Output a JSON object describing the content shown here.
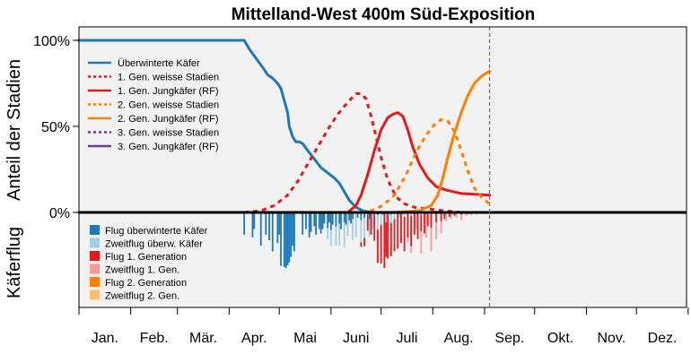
{
  "chart_data": {
    "type": "line+stacked-bar",
    "title": "Mittelland-West 400m Süd-Exposition",
    "ylabel_top": "Anteil der Stadien",
    "ylabel_bottom": "Käferflug",
    "y_ticks": [
      "100%",
      "50%",
      "0%"
    ],
    "y_tick_values": [
      100,
      50,
      0
    ],
    "ylim_top": [
      0,
      100
    ],
    "x_months": [
      "Jan.",
      "Feb.",
      "Mär.",
      "Apr.",
      "Mai",
      "Juni",
      "Juli",
      "Aug.",
      "Sep.",
      "Okt.",
      "Nov.",
      "Dez."
    ],
    "x_range_days": [
      1,
      365
    ],
    "current_day": 247,
    "background_color": "#f2f2f2",
    "legend_top": [
      {
        "label": "Überwinterte Käfer",
        "color": "#1f78b4",
        "dash": false
      },
      {
        "label": "1. Gen. weisse Stadien",
        "color": "#e31a1c",
        "dash": true
      },
      {
        "label": "1. Gen. Jungkäfer (RF)",
        "color": "#e31a1c",
        "dash": false
      },
      {
        "label": "2. Gen. weisse Stadien",
        "color": "#ff7f00",
        "dash": true
      },
      {
        "label": "2. Gen. Jungkäfer (RF)",
        "color": "#ff7f00",
        "dash": false
      },
      {
        "label": "3. Gen. weisse Stadien",
        "color": "#6a3d9a",
        "dash": true
      },
      {
        "label": "3. Gen. Jungkäfer (RF)",
        "color": "#6a3d9a",
        "dash": false
      }
    ],
    "legend_bottom": [
      {
        "label": "Flug überwinterte Käfer",
        "color": "#1f78b4"
      },
      {
        "label": "Zweitflug überw. Käfer",
        "color": "#a6cee3"
      },
      {
        "label": "Flug 1. Generation",
        "color": "#e31a1c"
      },
      {
        "label": "Zweitflug 1. Gen.",
        "color": "#fb9a99"
      },
      {
        "label": "Flug 2. Generation",
        "color": "#ff7f00"
      },
      {
        "label": "Zweitflug 2. Gen.",
        "color": "#fdbf6f"
      }
    ],
    "series": [
      {
        "name": "Überwinterte Käfer",
        "color": "#1f78b4",
        "dash": false,
        "points": [
          [
            1,
            100
          ],
          [
            100,
            100
          ],
          [
            103,
            95
          ],
          [
            106,
            91
          ],
          [
            109,
            87
          ],
          [
            112,
            83
          ],
          [
            114,
            80
          ],
          [
            117,
            78
          ],
          [
            120,
            75
          ],
          [
            122,
            72
          ],
          [
            124,
            65
          ],
          [
            126,
            58
          ],
          [
            127,
            50
          ],
          [
            129,
            44
          ],
          [
            131,
            41
          ],
          [
            133,
            41
          ],
          [
            135,
            40
          ],
          [
            138,
            36
          ],
          [
            142,
            31
          ],
          [
            146,
            26
          ],
          [
            150,
            23
          ],
          [
            154,
            20
          ],
          [
            157,
            17
          ],
          [
            160,
            12
          ],
          [
            163,
            7
          ],
          [
            167,
            3
          ],
          [
            171,
            1
          ],
          [
            176,
            0
          ],
          [
            247,
            0
          ]
        ]
      },
      {
        "name": "1. Gen. weisse Stadien",
        "color": "#e31a1c",
        "dash": true,
        "points": [
          [
            100,
            0
          ],
          [
            110,
            1
          ],
          [
            118,
            4
          ],
          [
            126,
            10
          ],
          [
            132,
            18
          ],
          [
            138,
            28
          ],
          [
            144,
            38
          ],
          [
            150,
            48
          ],
          [
            156,
            57
          ],
          [
            162,
            64
          ],
          [
            167,
            69
          ],
          [
            170,
            69
          ],
          [
            173,
            66
          ],
          [
            176,
            56
          ],
          [
            179,
            44
          ],
          [
            182,
            32
          ],
          [
            186,
            19
          ],
          [
            191,
            9
          ],
          [
            196,
            5
          ],
          [
            202,
            3
          ],
          [
            210,
            2
          ],
          [
            220,
            1
          ],
          [
            230,
            0
          ],
          [
            247,
            0
          ]
        ]
      },
      {
        "name": "1. Gen. Jungkäfer (RF)",
        "color": "#e31a1c",
        "dash": false,
        "points": [
          [
            1,
            0
          ],
          [
            162,
            0
          ],
          [
            167,
            4
          ],
          [
            170,
            10
          ],
          [
            174,
            22
          ],
          [
            178,
            36
          ],
          [
            182,
            48
          ],
          [
            186,
            55
          ],
          [
            189,
            57
          ],
          [
            192,
            58
          ],
          [
            195,
            56
          ],
          [
            198,
            48
          ],
          [
            201,
            38
          ],
          [
            205,
            28
          ],
          [
            210,
            20
          ],
          [
            215,
            15
          ],
          [
            221,
            13
          ],
          [
            230,
            11
          ],
          [
            247,
            10
          ]
        ]
      },
      {
        "name": "2. Gen. weisse Stadien",
        "color": "#ff7f00",
        "dash": true,
        "points": [
          [
            170,
            0
          ],
          [
            176,
            1
          ],
          [
            183,
            4
          ],
          [
            190,
            10
          ],
          [
            197,
            22
          ],
          [
            203,
            35
          ],
          [
            209,
            45
          ],
          [
            214,
            51
          ],
          [
            218,
            54
          ],
          [
            222,
            53
          ],
          [
            226,
            47
          ],
          [
            230,
            36
          ],
          [
            234,
            24
          ],
          [
            238,
            14
          ],
          [
            242,
            9
          ],
          [
            247,
            5
          ]
        ]
      },
      {
        "name": "2. Gen. Jungkäfer (RF)",
        "color": "#ff7f00",
        "dash": false,
        "points": [
          [
            190,
            0
          ],
          [
            205,
            1
          ],
          [
            212,
            4
          ],
          [
            216,
            10
          ],
          [
            219,
            20
          ],
          [
            222,
            32
          ],
          [
            226,
            46
          ],
          [
            230,
            58
          ],
          [
            234,
            68
          ],
          [
            238,
            75
          ],
          [
            242,
            79
          ],
          [
            245,
            81
          ],
          [
            247,
            82
          ]
        ]
      }
    ],
    "flight_bars": [
      {
        "name": "Flug überwinterte Käfer",
        "color": "#1f78b4",
        "days": [
          100,
          105,
          106,
          110,
          113,
          115,
          117,
          120,
          121,
          122,
          124,
          125,
          126,
          127,
          128,
          129,
          130,
          135,
          137,
          139,
          140,
          142,
          143,
          145,
          146,
          147,
          148,
          150,
          151,
          152,
          153,
          155,
          157,
          158,
          160,
          161,
          163,
          164,
          165,
          168,
          170,
          172,
          174,
          175,
          178,
          180,
          183,
          186,
          188,
          191
        ],
        "values": [
          40,
          45,
          30,
          60,
          40,
          50,
          70,
          55,
          40,
          96,
          98,
          100,
          95,
          90,
          80,
          60,
          70,
          40,
          30,
          45,
          35,
          25,
          40,
          30,
          38,
          30,
          20,
          28,
          18,
          32,
          22,
          25,
          20,
          30,
          18,
          22,
          15,
          20,
          12,
          10,
          14,
          10,
          8,
          12,
          6,
          5,
          4,
          3,
          4,
          2
        ]
      },
      {
        "name": "Zweitflug überw. Käfer",
        "color": "#a6cee3",
        "days": [
          150,
          152,
          155,
          157,
          160,
          162,
          165,
          167,
          170,
          172,
          175,
          177,
          180,
          182,
          185,
          188,
          190,
          193,
          196,
          200,
          203,
          206,
          210,
          214,
          218
        ],
        "values": [
          20,
          28,
          35,
          40,
          45,
          42,
          38,
          45,
          40,
          36,
          32,
          30,
          26,
          22,
          18,
          15,
          12,
          10,
          8,
          6,
          5,
          4,
          3,
          2,
          1
        ]
      },
      {
        "name": "Flug 1. Generation",
        "color": "#e31a1c",
        "days": [
          170,
          172,
          174,
          176,
          178,
          180,
          182,
          184,
          185,
          186,
          188,
          190,
          192,
          194,
          196,
          198,
          200,
          202,
          204,
          206,
          208,
          210,
          212,
          215,
          218,
          220,
          223,
          226,
          230,
          234,
          238
        ],
        "values": [
          8,
          15,
          25,
          40,
          45,
          60,
          70,
          100,
          62,
          80,
          60,
          58,
          65,
          55,
          62,
          45,
          55,
          40,
          48,
          30,
          38,
          22,
          28,
          18,
          15,
          12,
          8,
          6,
          4,
          3,
          2
        ]
      },
      {
        "name": "Zweitflug 1. Gen.",
        "color": "#fb9a99",
        "days": [
          195,
          198,
          200,
          203,
          206,
          209,
          212,
          215,
          218,
          221,
          224,
          227,
          230,
          233,
          236,
          239,
          242,
          245
        ],
        "values": [
          4,
          8,
          12,
          25,
          40,
          45,
          42,
          30,
          22,
          16,
          12,
          10,
          8,
          6,
          5,
          4,
          3,
          2
        ]
      },
      {
        "name": "Flug 2. Generation",
        "color": "#ff7f00",
        "days": [
          225,
          230,
          235,
          240,
          245
        ],
        "values": [
          1,
          1,
          1,
          1,
          1
        ]
      },
      {
        "name": "Zweitflug 2. Gen.",
        "color": "#fdbf6f",
        "days": [
          230,
          240
        ],
        "values": [
          1,
          1
        ]
      }
    ]
  }
}
